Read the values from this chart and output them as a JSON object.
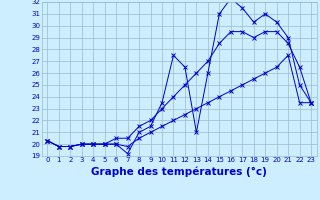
{
  "hours": [
    0,
    1,
    2,
    3,
    4,
    5,
    6,
    7,
    8,
    9,
    10,
    11,
    12,
    13,
    14,
    15,
    16,
    17,
    18,
    19,
    20,
    21,
    22,
    23
  ],
  "line1": [
    20.3,
    19.8,
    19.8,
    20.0,
    20.0,
    20.0,
    20.0,
    19.2,
    21.0,
    21.5,
    23.5,
    27.5,
    26.5,
    21.0,
    26.0,
    31.0,
    32.3,
    31.5,
    30.3,
    31.0,
    30.3,
    29.0,
    25.0,
    23.5
  ],
  "line2": [
    20.3,
    19.8,
    19.8,
    20.0,
    20.0,
    20.0,
    20.5,
    20.5,
    21.5,
    22.0,
    23.0,
    24.0,
    25.0,
    26.0,
    27.0,
    28.5,
    29.5,
    29.5,
    29.0,
    29.5,
    29.5,
    28.5,
    26.5,
    23.5
  ],
  "line3": [
    20.3,
    19.8,
    19.8,
    20.0,
    20.0,
    20.0,
    20.0,
    19.8,
    20.5,
    21.0,
    21.5,
    22.0,
    22.5,
    23.0,
    23.5,
    24.0,
    24.5,
    25.0,
    25.5,
    26.0,
    26.5,
    27.5,
    23.5,
    23.5
  ],
  "line_color": "#0000cc",
  "bg_color": "#cceeff",
  "grid_color": "#99bbcc",
  "ylim": [
    19,
    32
  ],
  "yticks": [
    19,
    20,
    21,
    22,
    23,
    24,
    25,
    26,
    27,
    28,
    29,
    30,
    31,
    32
  ],
  "xlabel": "Graphe des températures (°c)",
  "tick_fontsize": 5.0,
  "xlabel_fontsize": 7.5
}
